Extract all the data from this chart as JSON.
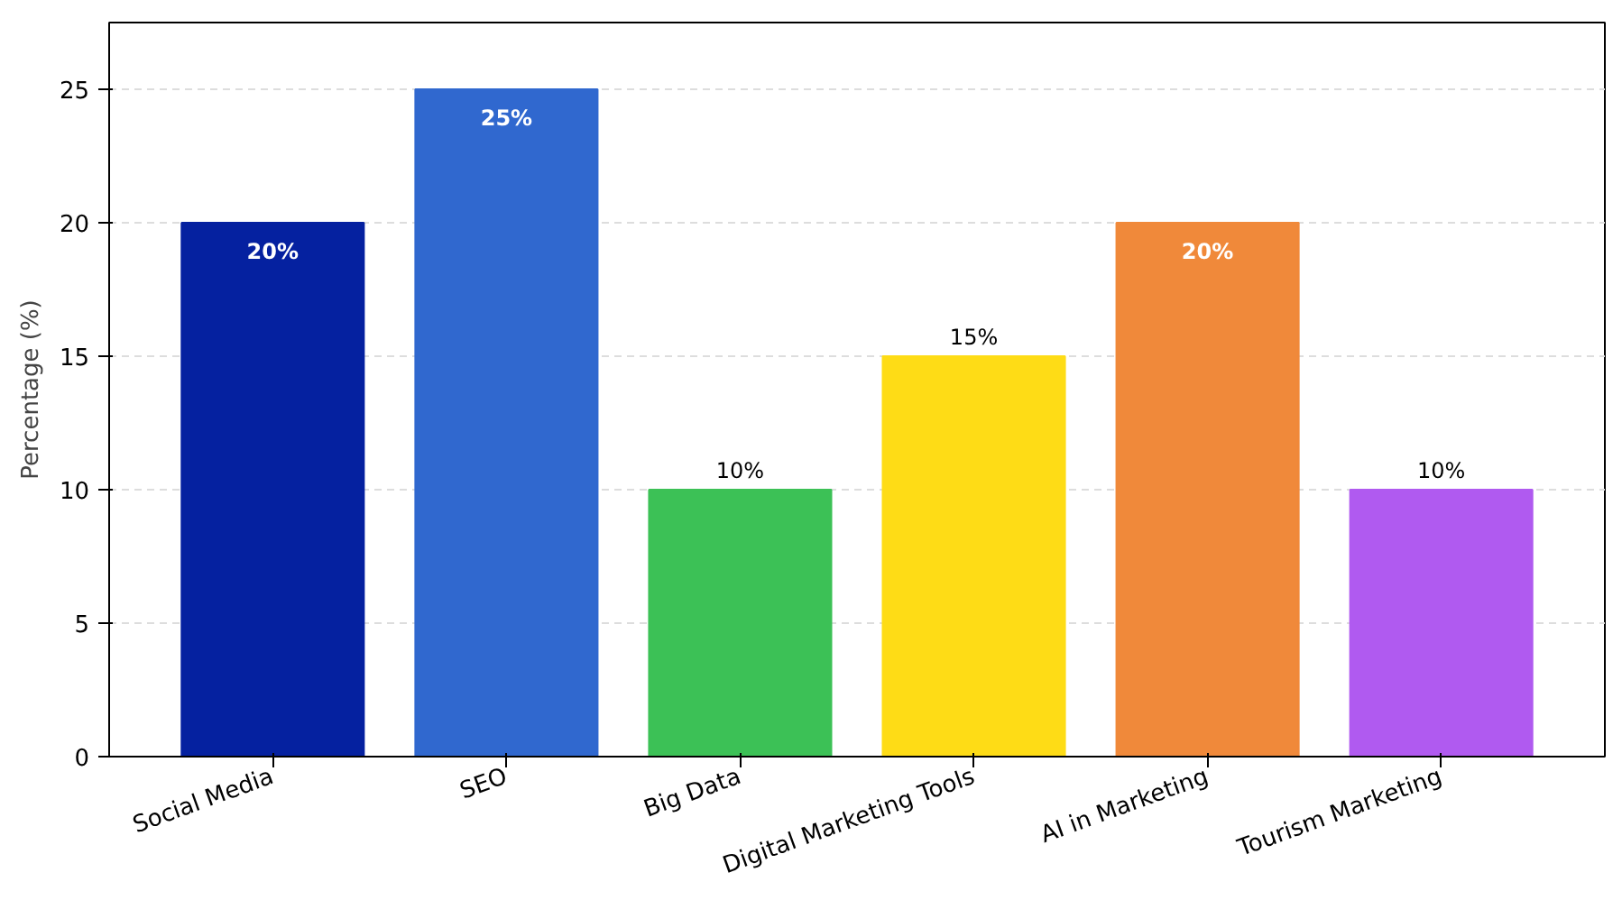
{
  "chart_data": {
    "type": "bar",
    "ylabel": "Percentage (%)",
    "categories": [
      "Social Media",
      "SEO",
      "Big Data",
      "Digital Marketing Tools",
      "AI in Marketing",
      "Tourism Marketing"
    ],
    "values": [
      20,
      25,
      10,
      15,
      20,
      10
    ],
    "colors": [
      "#0521a0",
      "#3068cf",
      "#3cc156",
      "#fedc16",
      "#f0893a",
      "#b05af0"
    ],
    "value_labels": [
      "20%",
      "25%",
      "10%",
      "15%",
      "20%",
      "10%"
    ],
    "ylim": [
      0,
      27.5
    ],
    "yticks": [
      0,
      5,
      10,
      15,
      20,
      25
    ],
    "grid": "y"
  }
}
